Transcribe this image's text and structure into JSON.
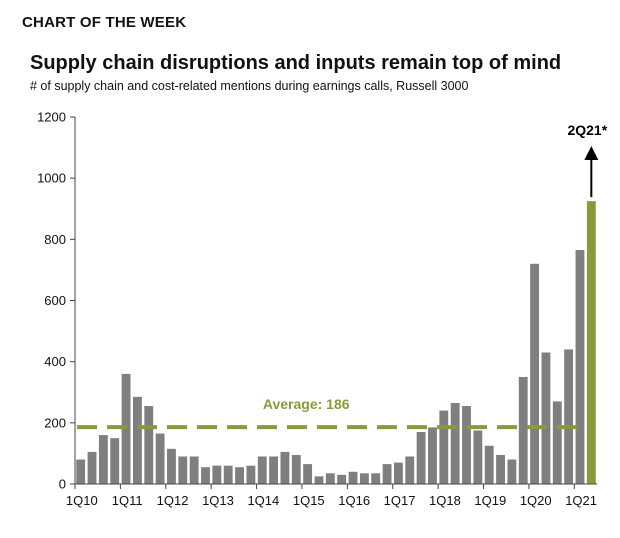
{
  "header": {
    "kicker": "CHART OF THE WEEK"
  },
  "chart_data": {
    "type": "bar",
    "title": "Supply chain disruptions and inputs remain top of mind",
    "subtitle": "# of supply chain and cost-related mentions during earnings calls, Russell 3000",
    "xlabel": "",
    "ylabel": "",
    "ylim": [
      0,
      1200
    ],
    "yticks": [
      0,
      200,
      400,
      600,
      800,
      1000,
      1200
    ],
    "categories": [
      "1Q10",
      "2Q10",
      "3Q10",
      "4Q10",
      "1Q11",
      "2Q11",
      "3Q11",
      "4Q11",
      "1Q12",
      "2Q12",
      "3Q12",
      "4Q12",
      "1Q13",
      "2Q13",
      "3Q13",
      "4Q13",
      "1Q14",
      "2Q14",
      "3Q14",
      "4Q14",
      "1Q15",
      "2Q15",
      "3Q15",
      "4Q15",
      "1Q16",
      "2Q16",
      "3Q16",
      "4Q16",
      "1Q17",
      "2Q17",
      "3Q17",
      "4Q17",
      "1Q18",
      "2Q18",
      "3Q18",
      "4Q18",
      "1Q19",
      "2Q19",
      "3Q19",
      "4Q19",
      "1Q20",
      "2Q20",
      "3Q20",
      "4Q20",
      "1Q21",
      "2Q21"
    ],
    "x_tick_labels": [
      "1Q10",
      "1Q11",
      "1Q12",
      "1Q13",
      "1Q14",
      "1Q15",
      "1Q16",
      "1Q17",
      "1Q18",
      "1Q19",
      "1Q20",
      "1Q21"
    ],
    "values": [
      80,
      105,
      160,
      150,
      360,
      285,
      255,
      165,
      115,
      90,
      90,
      55,
      60,
      60,
      55,
      60,
      90,
      90,
      105,
      95,
      65,
      25,
      35,
      30,
      40,
      35,
      35,
      65,
      70,
      90,
      170,
      185,
      240,
      265,
      255,
      175,
      125,
      95,
      80,
      350,
      720,
      430,
      270,
      440,
      765,
      925
    ],
    "highlight": {
      "category": "2Q21",
      "label": "2Q21*",
      "color": "#8a9a3b"
    },
    "bar_color": "#7f7f7f",
    "average": {
      "value": 186,
      "label": "Average: 186",
      "color": "#8a9a3b"
    },
    "grid": false
  }
}
